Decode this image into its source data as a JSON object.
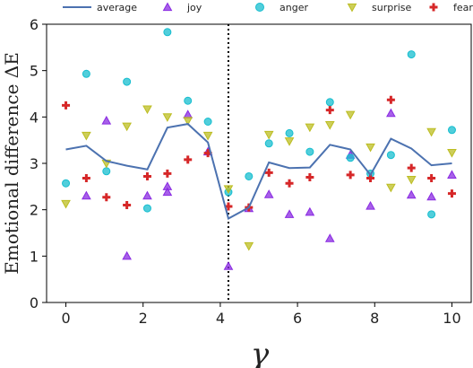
{
  "chart_data": {
    "type": "scatter",
    "xlabel": "γ",
    "ylabel": "Emotional difference ΔE",
    "xlim": [
      -0.5,
      10.5
    ],
    "ylim": [
      0,
      6
    ],
    "xticks": [
      0,
      2,
      4,
      6,
      8,
      10
    ],
    "yticks": [
      0,
      1,
      2,
      3,
      4,
      5,
      6
    ],
    "grid": false,
    "legend_position": "top",
    "vline": {
      "x": 4.21,
      "style": "dotted"
    },
    "series": [
      {
        "name": "average",
        "kind": "line",
        "color": "#4c72b0",
        "points": [
          [
            0,
            3.3
          ],
          [
            0.53,
            3.38
          ],
          [
            1.05,
            3.05
          ],
          [
            1.58,
            2.95
          ],
          [
            2.11,
            2.87
          ],
          [
            2.63,
            3.77
          ],
          [
            3.16,
            3.85
          ],
          [
            3.68,
            3.45
          ],
          [
            4.21,
            1.81
          ],
          [
            4.74,
            2.05
          ],
          [
            5.26,
            3.02
          ],
          [
            5.79,
            2.9
          ],
          [
            6.32,
            2.91
          ],
          [
            6.84,
            3.4
          ],
          [
            7.37,
            3.3
          ],
          [
            7.89,
            2.75
          ],
          [
            8.42,
            3.53
          ],
          [
            8.95,
            3.32
          ],
          [
            9.47,
            2.96
          ],
          [
            10,
            3.0
          ]
        ]
      },
      {
        "name": "joy",
        "kind": "scatter",
        "marker": "triangle-up",
        "color": "#8a2be2",
        "points": [
          [
            0.53,
            2.3
          ],
          [
            1.05,
            3.92
          ],
          [
            1.58,
            1.0
          ],
          [
            2.11,
            2.3
          ],
          [
            2.63,
            2.5
          ],
          [
            2.63,
            2.38
          ],
          [
            3.16,
            4.05
          ],
          [
            3.68,
            3.25
          ],
          [
            4.21,
            0.78
          ],
          [
            4.74,
            2.03
          ],
          [
            5.26,
            2.33
          ],
          [
            5.79,
            1.9
          ],
          [
            6.32,
            1.95
          ],
          [
            6.84,
            1.38
          ],
          [
            7.37,
            3.18
          ],
          [
            7.89,
            2.08
          ],
          [
            8.42,
            4.08
          ],
          [
            8.95,
            2.32
          ],
          [
            9.47,
            2.28
          ],
          [
            10,
            2.75
          ]
        ]
      },
      {
        "name": "anger",
        "kind": "scatter",
        "marker": "circle",
        "color": "#17becf",
        "points": [
          [
            0,
            2.57
          ],
          [
            0.53,
            4.93
          ],
          [
            1.05,
            2.83
          ],
          [
            1.58,
            4.76
          ],
          [
            2.11,
            2.03
          ],
          [
            2.63,
            5.83
          ],
          [
            3.16,
            4.35
          ],
          [
            3.68,
            3.9
          ],
          [
            4.21,
            2.38
          ],
          [
            4.74,
            2.72
          ],
          [
            5.26,
            3.43
          ],
          [
            5.79,
            3.65
          ],
          [
            6.32,
            3.25
          ],
          [
            6.84,
            4.32
          ],
          [
            7.37,
            3.12
          ],
          [
            7.89,
            2.78
          ],
          [
            8.42,
            3.18
          ],
          [
            8.95,
            5.35
          ],
          [
            9.47,
            1.9
          ],
          [
            10,
            3.72
          ]
        ]
      },
      {
        "name": "surprise",
        "kind": "scatter",
        "marker": "triangle-down",
        "color": "#bcbd22",
        "points": [
          [
            0,
            2.13
          ],
          [
            0.53,
            3.6
          ],
          [
            1.05,
            3.0
          ],
          [
            1.58,
            3.8
          ],
          [
            2.11,
            4.17
          ],
          [
            2.63,
            4.0
          ],
          [
            3.16,
            3.92
          ],
          [
            3.68,
            3.6
          ],
          [
            4.21,
            2.45
          ],
          [
            4.74,
            1.22
          ],
          [
            5.26,
            3.62
          ],
          [
            5.79,
            3.48
          ],
          [
            6.32,
            3.78
          ],
          [
            6.84,
            3.83
          ],
          [
            7.37,
            4.05
          ],
          [
            7.89,
            3.35
          ],
          [
            8.42,
            2.48
          ],
          [
            8.95,
            2.65
          ],
          [
            9.47,
            3.68
          ],
          [
            10,
            3.23
          ]
        ]
      },
      {
        "name": "fear",
        "kind": "scatter",
        "marker": "plus",
        "color": "#d62728",
        "points": [
          [
            0,
            4.25
          ],
          [
            0.53,
            2.68
          ],
          [
            1.05,
            2.27
          ],
          [
            1.58,
            2.1
          ],
          [
            2.11,
            2.72
          ],
          [
            2.63,
            2.78
          ],
          [
            3.16,
            3.08
          ],
          [
            3.68,
            3.22
          ],
          [
            4.21,
            2.07
          ],
          [
            4.74,
            2.05
          ],
          [
            5.26,
            2.8
          ],
          [
            5.79,
            2.57
          ],
          [
            6.32,
            2.7
          ],
          [
            6.84,
            4.15
          ],
          [
            7.37,
            2.75
          ],
          [
            7.89,
            2.68
          ],
          [
            8.42,
            4.37
          ],
          [
            8.95,
            2.9
          ],
          [
            9.47,
            2.68
          ],
          [
            10,
            2.35
          ]
        ]
      }
    ]
  }
}
